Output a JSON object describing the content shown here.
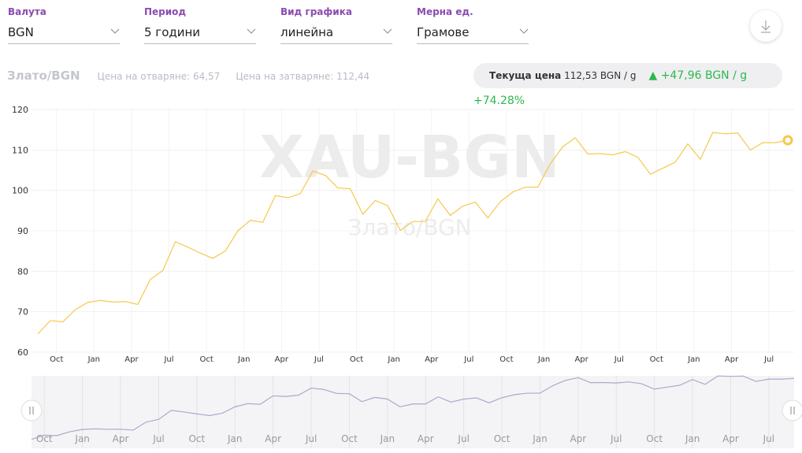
{
  "filters": [
    {
      "label": "Валута",
      "value": "BGN"
    },
    {
      "label": "Период",
      "value": "5 години"
    },
    {
      "label": "Вид графика",
      "value": "линейна"
    },
    {
      "label": "Мерна ед.",
      "value": "Грамове"
    }
  ],
  "summary": {
    "title": "Злато/BGN",
    "open": "Цена на отваряне: 64,57",
    "close": "Цена на затваряне: 112,44",
    "current_label": "Текуща цена",
    "current_value": "112,53 BGN / g",
    "change": "+47,96 BGN / g",
    "change_pct": "+74.28%"
  },
  "chart_data": {
    "type": "line",
    "watermark": "XAU-BGN",
    "watermark_sub": "Злато/BGN",
    "color": "#f5c84c",
    "grid": true,
    "categories": [
      null,
      null,
      "Oct",
      null,
      null,
      "Jan",
      null,
      null,
      "Apr",
      null,
      null,
      "Jul",
      null,
      null,
      "Oct",
      null,
      null,
      "Jan",
      null,
      null,
      "Apr",
      null,
      null,
      "Jul",
      null,
      null,
      "Oct",
      null,
      null,
      "Jan",
      null,
      null,
      "Apr",
      null,
      null,
      "Jul",
      null,
      null,
      "Oct",
      null,
      null,
      "Jan",
      null,
      null,
      "Apr",
      null,
      null,
      "Jul",
      null,
      null,
      "Oct",
      null,
      null,
      "Jan",
      null,
      null,
      "Apr",
      null,
      null,
      "Jul",
      null
    ],
    "values": [
      64.5,
      67.8,
      67.5,
      70.5,
      72.3,
      72.8,
      72.4,
      72.5,
      71.8,
      78,
      80.2,
      87.3,
      86,
      84.5,
      83.2,
      85,
      90,
      92.6,
      92.1,
      98.7,
      98.2,
      99.2,
      104.8,
      103.7,
      100.6,
      100.4,
      94.1,
      97.5,
      96.2,
      90.1,
      92.3,
      92.3,
      97.9,
      93.8,
      96.1,
      97.1,
      93.2,
      97.2,
      99.6,
      100.8,
      100.8,
      106.6,
      110.8,
      113,
      109,
      109.1,
      108.8,
      109.6,
      108.2,
      104,
      105.5,
      107,
      111.5,
      107.7,
      114.3,
      114,
      114.2,
      110,
      111.8,
      111.8,
      112.4
    ],
    "ylim": [
      60,
      120
    ],
    "yticks": [
      60,
      70,
      80,
      90,
      100,
      110,
      120
    ]
  }
}
